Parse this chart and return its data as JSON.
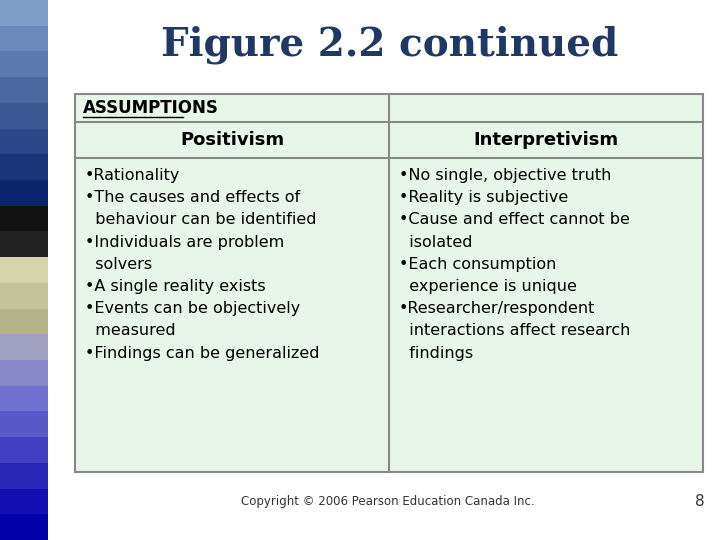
{
  "title": "Figure 2.2 continued",
  "title_color": "#1F3864",
  "title_fontsize": 28,
  "bg_color": "#FFFFFF",
  "table_bg": "#E8F5E9",
  "table_border_color": "#888888",
  "assumptions_label": "ASSUMPTIONS",
  "col1_header": "Positivism",
  "col2_header": "Interpretivism",
  "col1_items": [
    "•Rationality",
    "•The causes and effects of\n  behaviour can be identified",
    "•Individuals are problem\n  solvers",
    "•A single reality exists",
    "•Events can be objectively\n  measured",
    "•Findings can be generalized"
  ],
  "col2_items": [
    "•No single, objective truth",
    "•Reality is subjective",
    "•Cause and effect cannot be\n  isolated",
    "•Each consumption\n  experience is unique",
    "•Researcher/respondent\n  interactions affect research\n  findings"
  ],
  "footer": "Copyright © 2006 Pearson Education Canada Inc.",
  "page_number": "8",
  "sidebar_colors": [
    "#7B9DC8",
    "#6A8BBB",
    "#5A7AAE",
    "#4A69A1",
    "#3A5894",
    "#2A4787",
    "#1A367A",
    "#0A256D",
    "#111111",
    "#222222",
    "#D4D4AA",
    "#C4C49A",
    "#B4B48A",
    "#A0A0C0",
    "#8888C8",
    "#7070D0",
    "#5858C8",
    "#4040C0",
    "#2828B8",
    "#1010B0",
    "#0000A8"
  ],
  "content_fontsize": 11.5,
  "header_fontsize": 13
}
